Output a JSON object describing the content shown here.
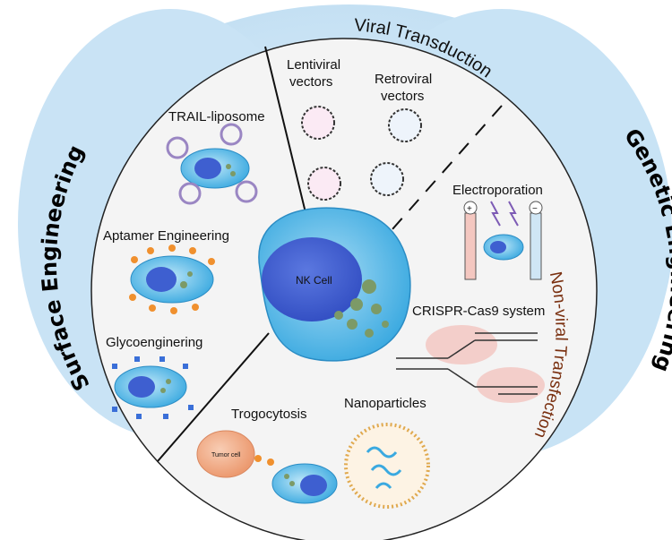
{
  "sections": {
    "surface_engineering": "Surface Engineering",
    "genetic_engineering": "Genetic Engineering",
    "viral_transduction": "Viral Transduction",
    "non_viral_transfection": "Non-viral Transfection"
  },
  "center": {
    "label": "NK Cell"
  },
  "items": {
    "trail_liposome": "TRAIL-liposome",
    "aptamer_engineering": "Aptamer Engineering",
    "glycoengineering": "Glycoenginering",
    "trogocytosis": "Trogocytosis",
    "tumor_cell": "Tumor cell",
    "lentiviral": "Lentiviral vectors",
    "retroviral": "Retroviral vectors",
    "electroporation": "Electroporation",
    "crispr": "CRISPR-Cas9 system",
    "nanoparticles": "Nanoparticles"
  },
  "symbols": {
    "plus": "+",
    "minus": "−"
  },
  "colors": {
    "halo": "#cfe6f5",
    "cell_outer": "#4db3e6",
    "nucleus": "#3e5fd0",
    "granule": "#7c9a67",
    "tumor": "#f0a57f",
    "liposome_ring": "#9a86c3",
    "crispr_pink": "#f2c7c2"
  }
}
